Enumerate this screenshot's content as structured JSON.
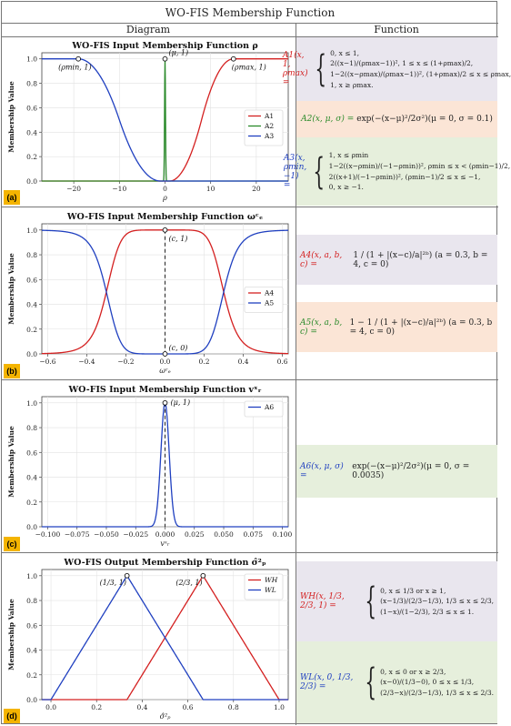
{
  "title": "WO-FIS Membership Function",
  "headers": {
    "diagram": "Diagram",
    "function": "Function"
  },
  "panels": [
    {
      "label": "(a)",
      "plot_title": "WO-FIS Input Membership Function ρ",
      "ylabel": "Membership Value",
      "xlabel": "ρ",
      "annotations": [
        "(ρmin, 1)",
        "(μ, 1)",
        "(ρmax, 1)"
      ],
      "legend": [
        "A1",
        "A2",
        "A3"
      ]
    },
    {
      "label": "(b)",
      "plot_title": "WO-FIS Input Membership Function ωᶜₑ",
      "ylabel": "Membership Value",
      "xlabel": "ωᶜₑ",
      "annotations": [
        "(c, 1)",
        "(c, 0)"
      ],
      "legend": [
        "A4",
        "A5"
      ]
    },
    {
      "label": "(c)",
      "plot_title": "WO-FIS Input Membership Function vˣᵣ",
      "ylabel": "Membership Value",
      "xlabel": "vˣᵣ",
      "annotations": [
        "(μ, 1)"
      ],
      "legend": [
        "A6"
      ]
    },
    {
      "label": "(d)",
      "plot_title": "WO-FIS Output Membership Function σ̂²ₚ",
      "ylabel": "Membership Value",
      "xlabel": "σ̂²ₚ",
      "annotations": [
        "(1/3, 1)",
        "(2/3, 1)"
      ],
      "legend": [
        "WH",
        "WL"
      ]
    }
  ],
  "functions": {
    "A1": {
      "name": "A1(x, 1, ρmax) =",
      "cases": [
        "0,  x ≤ 1,",
        "2((x−1)/(ρmax−1))²,  1 ≤ x ≤ (1+ρmax)/2,",
        "1−2((x−ρmax)/(ρmax−1))²,  (1+ρmax)/2 ≤ x ≤ ρmax,",
        "1,  x ≥ ρmax."
      ]
    },
    "A2": {
      "name": "A2(x, μ, σ) =",
      "expr": "exp(−(x−μ)²/2σ²)(μ = 0, σ = 0.1)"
    },
    "A3": {
      "name": "A3(x, ρmin, −1) =",
      "cases": [
        "1,  x ≤ ρmin",
        "1−2((x−ρmin)/(−1−ρmin))²,  ρmin ≤ x < (ρmin−1)/2,",
        "2((x+1)/(−1−ρmin))²,  (ρmin−1)/2 ≤ x ≤ −1,",
        "0,  x ≥ −1."
      ]
    },
    "A4": {
      "name": "A4(x, a, b, c) =",
      "expr": "1 / (1 + |(x−c)/a|²ᵇ)  (a = 0.3, b = 4, c = 0)"
    },
    "A5": {
      "name": "A5(x, a, b, c) =",
      "expr": "1 − 1 / (1 + |(x−c)/a|²ᵇ)  (a = 0.3, b = 4, c = 0)"
    },
    "A6": {
      "name": "A6(x, μ, σ) =",
      "expr": "exp(−(x−μ)²/2σ²)(μ = 0, σ = 0.0035)"
    },
    "WH": {
      "name": "WH(x, 1/3, 2/3, 1) =",
      "cases": [
        "0,  x ≤ 1/3 or x ≥ 1,",
        "(x−1/3)/(2/3−1/3),  1/3 ≤ x ≤ 2/3,",
        "(1−x)/(1−2/3),  2/3 ≤ x ≤ 1."
      ]
    },
    "WL": {
      "name": "WL(x, 0, 1/3, 2/3) =",
      "cases": [
        "0,  x ≤ 0 or x ≥ 2/3,",
        "(x−0)/(1/3−0),  0 ≤ x ≤ 1/3,",
        "(2/3−x)/(2/3−1/3),  1/3 ≤ x ≤ 2/3."
      ]
    }
  },
  "chart_data": [
    {
      "type": "line",
      "title": "WO-FIS Input Membership Function ρ",
      "xlabel": "ρ",
      "ylabel": "Membership Value",
      "xlim": [
        -27,
        27
      ],
      "ylim": [
        0,
        1.05
      ],
      "xticks": [
        -20,
        -10,
        0,
        10,
        20
      ],
      "yticks": [
        0.0,
        0.2,
        0.4,
        0.6,
        0.8,
        1.0
      ],
      "xtick_labels": [
        "−20",
        "−10",
        "0",
        "10",
        "20"
      ],
      "ytick_labels": [
        "0.0",
        "0.2",
        "0.4",
        "0.6",
        "0.8",
        "1.0"
      ],
      "series": [
        {
          "name": "A1",
          "color": "#d42020",
          "func": "A1",
          "params": {
            "rhomax": 15
          }
        },
        {
          "name": "A2",
          "color": "#2a8a2a",
          "func": "gauss",
          "params": {
            "mu": 0,
            "sigma": 0.1
          }
        },
        {
          "name": "A3",
          "color": "#2040c0",
          "func": "A3",
          "params": {
            "rhomin": -19
          }
        }
      ],
      "points": [
        {
          "label": "(ρmin, 1)",
          "x": -19,
          "y": 1
        },
        {
          "label": "(μ, 1)",
          "x": 0,
          "y": 1
        },
        {
          "label": "(ρmax, 1)",
          "x": 15,
          "y": 1
        }
      ],
      "legend_position": "center-right"
    },
    {
      "type": "line",
      "title": "WO-FIS Input Membership Function ωᶜₑ",
      "xlabel": "ωᶜₑ",
      "ylabel": "Membership Value",
      "xlim": [
        -0.63,
        0.63
      ],
      "ylim": [
        0,
        1.05
      ],
      "xticks": [
        -0.6,
        -0.4,
        -0.2,
        0.0,
        0.2,
        0.4,
        0.6
      ],
      "yticks": [
        0.0,
        0.2,
        0.4,
        0.6,
        0.8,
        1.0
      ],
      "xtick_labels": [
        "−0.6",
        "−0.4",
        "−0.2",
        "0.0",
        "0.2",
        "0.4",
        "0.6"
      ],
      "ytick_labels": [
        "0.0",
        "0.2",
        "0.4",
        "0.6",
        "0.8",
        "1.0"
      ],
      "series": [
        {
          "name": "A4",
          "color": "#d42020",
          "func": "bell",
          "params": {
            "a": 0.3,
            "b": 4,
            "c": 0
          }
        },
        {
          "name": "A5",
          "color": "#2040c0",
          "func": "bellc",
          "params": {
            "a": 0.3,
            "b": 4,
            "c": 0
          }
        }
      ],
      "points": [
        {
          "label": "(c, 1)",
          "x": 0,
          "y": 1
        },
        {
          "label": "(c, 0)",
          "x": 0,
          "y": 0
        }
      ],
      "legend_position": "center-right"
    },
    {
      "type": "line",
      "title": "WO-FIS Input Membership Function vˣᵣ",
      "xlabel": "vˣᵣ",
      "ylabel": "Membership Value",
      "xlim": [
        -0.105,
        0.105
      ],
      "ylim": [
        0,
        1.05
      ],
      "xticks": [
        -0.1,
        -0.075,
        -0.05,
        -0.025,
        0.0,
        0.025,
        0.05,
        0.075,
        0.1
      ],
      "yticks": [
        0.0,
        0.2,
        0.4,
        0.6,
        0.8,
        1.0
      ],
      "xtick_labels": [
        "−0.100",
        "−0.075",
        "−0.050",
        "−0.025",
        "0.000",
        "0.025",
        "0.050",
        "0.075",
        "0.100"
      ],
      "ytick_labels": [
        "0.0",
        "0.2",
        "0.4",
        "0.6",
        "0.8",
        "1.0"
      ],
      "series": [
        {
          "name": "A6",
          "color": "#2040c0",
          "func": "gauss",
          "params": {
            "mu": 0,
            "sigma": 0.0035
          }
        }
      ],
      "points": [
        {
          "label": "(μ, 1)",
          "x": 0,
          "y": 1
        }
      ],
      "legend_position": "top-right"
    },
    {
      "type": "line",
      "title": "WO-FIS Output Membership Function σ̂²ₚ",
      "xlabel": "σ̂²ₚ",
      "ylabel": "Membership Value",
      "xlim": [
        -0.04,
        1.04
      ],
      "ylim": [
        0,
        1.05
      ],
      "xticks": [
        0.0,
        0.2,
        0.4,
        0.6,
        0.8,
        1.0
      ],
      "yticks": [
        0.0,
        0.2,
        0.4,
        0.6,
        0.8,
        1.0
      ],
      "xtick_labels": [
        "0.0",
        "0.2",
        "0.4",
        "0.6",
        "0.8",
        "1.0"
      ],
      "ytick_labels": [
        "0.0",
        "0.2",
        "0.4",
        "0.6",
        "0.8",
        "1.0"
      ],
      "series": [
        {
          "name": "WH",
          "color": "#d42020",
          "func": "tri",
          "params": {
            "a": 0.3333,
            "b": 0.6667,
            "c": 1.0
          }
        },
        {
          "name": "WL",
          "color": "#2040c0",
          "func": "tri",
          "params": {
            "a": 0.0,
            "b": 0.3333,
            "c": 0.6667
          }
        }
      ],
      "points": [
        {
          "label": "(1/3, 1)",
          "x": 0.3333,
          "y": 1
        },
        {
          "label": "(2/3, 1)",
          "x": 0.6667,
          "y": 1
        }
      ],
      "legend_position": "top-right"
    }
  ]
}
